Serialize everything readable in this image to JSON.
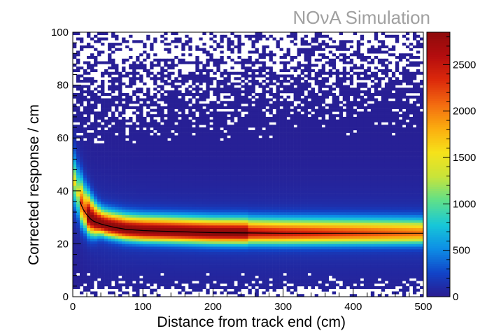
{
  "chart_data": {
    "type": "heatmap",
    "watermark": "NOνA Simulation",
    "xlabel": "Distance from track end (cm)",
    "ylabel": "Corrected response / cm",
    "xlim": [
      0,
      500
    ],
    "ylim": [
      0,
      100
    ],
    "zlim": [
      0,
      2850
    ],
    "x_ticks": [
      0,
      100,
      200,
      300,
      400,
      500
    ],
    "y_ticks": [
      0,
      20,
      40,
      60,
      80,
      100
    ],
    "z_ticks": [
      0,
      500,
      1000,
      1500,
      2000,
      2500
    ],
    "bins": {
      "x": 100,
      "y": 100
    },
    "empty_bin_color": "#ffffff",
    "colormap": [
      "#2a1b8f",
      "#1144c8",
      "#0d8ee6",
      "#17c7d8",
      "#5ee08a",
      "#c8e43a",
      "#f6e21a",
      "#fbad0f",
      "#f36b10",
      "#dd2a0b",
      "#b50d0e",
      "#8e0b0b"
    ],
    "band_profile": {
      "description_points": [
        {
          "x": 10,
          "mean": 36
        },
        {
          "x": 20,
          "mean": 31
        },
        {
          "x": 30,
          "mean": 28.5
        },
        {
          "x": 50,
          "mean": 26.8
        },
        {
          "x": 75,
          "mean": 25.5
        },
        {
          "x": 100,
          "mean": 25
        },
        {
          "x": 150,
          "mean": 24.6
        },
        {
          "x": 200,
          "mean": 24.2
        },
        {
          "x": 300,
          "mean": 24
        },
        {
          "x": 400,
          "mean": 24
        },
        {
          "x": 500,
          "mean": 24
        }
      ]
    },
    "mean_curve": {
      "x": [
        10,
        15,
        20,
        25,
        30,
        40,
        50,
        60,
        75,
        100,
        125,
        150,
        200,
        250,
        300,
        350,
        400,
        450,
        500
      ],
      "y": [
        36,
        33,
        31,
        29.5,
        28.5,
        27.5,
        26.8,
        26.2,
        25.5,
        25,
        24.8,
        24.6,
        24.2,
        24.1,
        24,
        24,
        24,
        24,
        24
      ]
    },
    "line_color": "#000000"
  }
}
